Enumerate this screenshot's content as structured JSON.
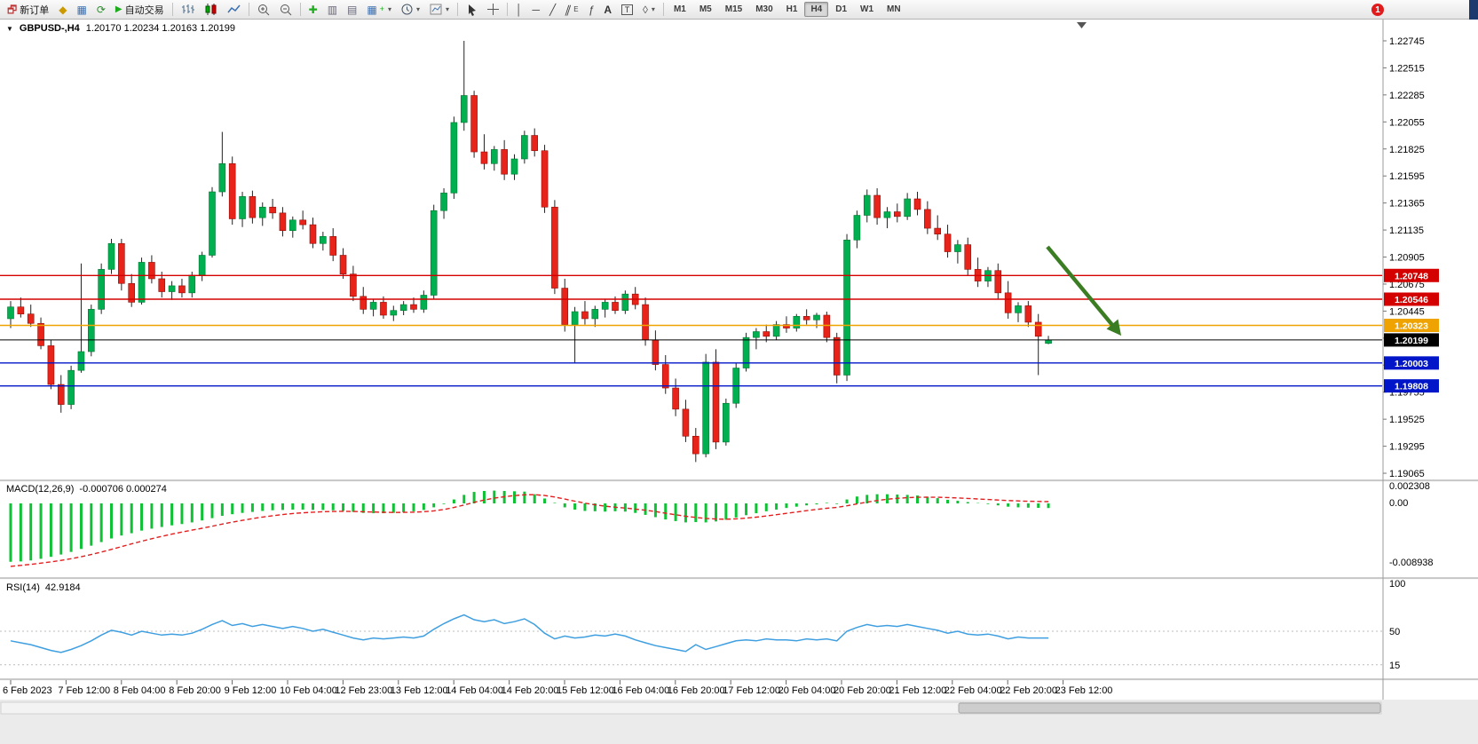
{
  "toolbar": {
    "new_order_label": "新订单",
    "auto_trading_label": "自动交易",
    "timeframes": [
      "M1",
      "M5",
      "M15",
      "M30",
      "H1",
      "H4",
      "D1",
      "W1",
      "MN"
    ],
    "active_timeframe": "H4",
    "notification_count": "1"
  },
  "chart": {
    "symbol_period": "GBPUSD-,H4",
    "ohlc_text": "1.20170 1.20234 1.20163 1.20199"
  },
  "chart_data": {
    "main": {
      "type": "candlestick",
      "symbol": "GBPUSD",
      "period": "H4",
      "up_color": "#00b050",
      "down_color": "#e8231a",
      "wick_color": "#222222",
      "price_axis_labels": [
        "1.22745",
        "1.22515",
        "1.22285",
        "1.22055",
        "1.21825",
        "1.21595",
        "1.21365",
        "1.21135",
        "1.20905",
        "1.20675",
        "1.20445",
        "1.20215",
        "1.19985",
        "1.19755",
        "1.19525",
        "1.19295",
        "1.19065"
      ],
      "time_labels": [
        "6 Feb 2023",
        "7 Feb 12:00",
        "8 Feb 04:00",
        "8 Feb 20:00",
        "9 Feb 12:00",
        "10 Feb 04:00",
        "12 Feb 23:00",
        "13 Feb 12:00",
        "14 Feb 04:00",
        "14 Feb 20:00",
        "15 Feb 12:00",
        "16 Feb 04:00",
        "16 Feb 20:00",
        "17 Feb 12:00",
        "20 Feb 04:00",
        "20 Feb 20:00",
        "21 Feb 12:00",
        "22 Feb 04:00",
        "22 Feb 20:00",
        "23 Feb 12:00"
      ],
      "levels": [
        {
          "price": 1.20748,
          "label": "1.20748",
          "color": "#d40000"
        },
        {
          "price": 1.20546,
          "label": "1.20546",
          "color": "#d40000"
        },
        {
          "price": 1.20323,
          "label": "1.20323",
          "color": "#efa300"
        },
        {
          "price": 1.20199,
          "label": "1.20199",
          "color": "#000000",
          "current": true
        },
        {
          "price": 1.20003,
          "label": "1.20003",
          "color": "#0016c8"
        },
        {
          "price": 1.19808,
          "label": "1.19808",
          "color": "#0016c8"
        }
      ],
      "annotation_arrow": {
        "color": "#3b7d23",
        "direction": "down-right"
      },
      "candles": [
        [
          1.2038,
          1.2053,
          1.203,
          1.2048
        ],
        [
          1.2048,
          1.2056,
          1.2039,
          1.2042
        ],
        [
          1.2042,
          1.205,
          1.2031,
          1.2034
        ],
        [
          1.2034,
          1.2039,
          1.2012,
          1.2015
        ],
        [
          1.2015,
          1.202,
          1.1978,
          1.1982
        ],
        [
          1.1982,
          1.199,
          1.1958,
          1.1965
        ],
        [
          1.1965,
          1.1998,
          1.1961,
          1.1994
        ],
        [
          1.1994,
          1.2085,
          1.1992,
          1.201
        ],
        [
          1.201,
          1.205,
          1.2006,
          1.2046
        ],
        [
          1.2046,
          1.2085,
          1.2042,
          1.208
        ],
        [
          1.208,
          1.2106,
          1.2076,
          1.2102
        ],
        [
          1.2102,
          1.2106,
          1.2062,
          1.2068
        ],
        [
          1.2068,
          1.2076,
          1.2048,
          1.2052
        ],
        [
          1.2052,
          1.209,
          1.205,
          1.2086
        ],
        [
          1.2086,
          1.2092,
          1.2068,
          1.2072
        ],
        [
          1.2072,
          1.2078,
          1.2056,
          1.2061
        ],
        [
          1.2061,
          1.207,
          1.2054,
          1.2066
        ],
        [
          1.2066,
          1.2072,
          1.2056,
          1.206
        ],
        [
          1.206,
          1.2078,
          1.2056,
          1.2075
        ],
        [
          1.2075,
          1.2095,
          1.207,
          1.2092
        ],
        [
          1.2092,
          1.215,
          1.209,
          1.2146
        ],
        [
          1.2146,
          1.2197,
          1.2142,
          1.217
        ],
        [
          1.217,
          1.2176,
          1.2118,
          1.2123
        ],
        [
          1.2123,
          1.2146,
          1.2116,
          1.2142
        ],
        [
          1.2142,
          1.2147,
          1.2119,
          1.2124
        ],
        [
          1.2124,
          1.2137,
          1.2117,
          1.2133
        ],
        [
          1.2133,
          1.214,
          1.2123,
          1.2128
        ],
        [
          1.2128,
          1.2133,
          1.2108,
          1.2113
        ],
        [
          1.2113,
          1.2125,
          1.2107,
          1.2122
        ],
        [
          1.2122,
          1.213,
          1.2114,
          1.2118
        ],
        [
          1.2118,
          1.2124,
          1.2098,
          1.2102
        ],
        [
          1.2102,
          1.2112,
          1.2096,
          1.2108
        ],
        [
          1.2108,
          1.2115,
          1.2087,
          1.2092
        ],
        [
          1.2092,
          1.2098,
          1.2072,
          1.2076
        ],
        [
          1.2076,
          1.2083,
          1.2053,
          1.2057
        ],
        [
          1.2057,
          1.2065,
          1.2042,
          1.2046
        ],
        [
          1.2046,
          1.2055,
          1.204,
          1.2052
        ],
        [
          1.2052,
          1.2057,
          1.2038,
          1.2041
        ],
        [
          1.2041,
          1.2049,
          1.2036,
          1.2045
        ],
        [
          1.2045,
          1.2053,
          1.2041,
          1.205
        ],
        [
          1.205,
          1.2056,
          1.2043,
          1.2046
        ],
        [
          1.2046,
          1.2062,
          1.2043,
          1.2058
        ],
        [
          1.2058,
          1.2135,
          1.2055,
          1.213
        ],
        [
          1.213,
          1.2149,
          1.2123,
          1.2145
        ],
        [
          1.2145,
          1.221,
          1.214,
          1.2205
        ],
        [
          1.2205,
          1.22745,
          1.2198,
          1.2228
        ],
        [
          1.2228,
          1.2232,
          1.2175,
          1.218
        ],
        [
          1.218,
          1.2195,
          1.2165,
          1.217
        ],
        [
          1.217,
          1.2185,
          1.2164,
          1.2182
        ],
        [
          1.2182,
          1.219,
          1.2156,
          1.2161
        ],
        [
          1.2161,
          1.2178,
          1.2156,
          1.2174
        ],
        [
          1.2174,
          1.2198,
          1.217,
          1.2194
        ],
        [
          1.2194,
          1.22,
          1.2176,
          1.2181
        ],
        [
          1.2181,
          1.2186,
          1.2128,
          1.2133
        ],
        [
          1.2133,
          1.2139,
          1.2059,
          1.2064
        ],
        [
          1.2064,
          1.2072,
          1.2027,
          1.2033
        ],
        [
          1.2033,
          1.2048,
          1.2,
          1.2044
        ],
        [
          1.2044,
          1.2053,
          1.2033,
          1.2038
        ],
        [
          1.2038,
          1.2049,
          1.2031,
          1.2046
        ],
        [
          1.2046,
          1.2055,
          1.2039,
          1.2052
        ],
        [
          1.2052,
          1.2057,
          1.2042,
          1.2045
        ],
        [
          1.2045,
          1.2062,
          1.2042,
          1.2059
        ],
        [
          1.2059,
          1.2065,
          1.2046,
          1.205
        ],
        [
          1.205,
          1.2056,
          1.2015,
          1.202
        ],
        [
          1.202,
          1.2028,
          1.1994,
          1.1999
        ],
        [
          1.1999,
          1.2007,
          1.1974,
          1.1979
        ],
        [
          1.1979,
          1.1987,
          1.1955,
          1.1961
        ],
        [
          1.1961,
          1.1969,
          1.1933,
          1.1938
        ],
        [
          1.1938,
          1.1945,
          1.1916,
          1.1923
        ],
        [
          1.1923,
          1.2008,
          1.192,
          1.2001
        ],
        [
          1.2001,
          1.2012,
          1.1927,
          1.1933
        ],
        [
          1.1933,
          1.197,
          1.193,
          1.1966
        ],
        [
          1.1966,
          1.2,
          1.1962,
          1.1996
        ],
        [
          1.1996,
          1.2026,
          1.1993,
          1.2022
        ],
        [
          1.2022,
          1.203,
          1.2012,
          1.2027
        ],
        [
          1.2027,
          1.2033,
          1.2018,
          1.2023
        ],
        [
          1.2023,
          1.2036,
          1.202,
          1.2033
        ],
        [
          1.2033,
          1.204,
          1.2026,
          1.203
        ],
        [
          1.203,
          1.2042,
          1.2027,
          1.204
        ],
        [
          1.204,
          1.2046,
          1.2033,
          1.2037
        ],
        [
          1.2037,
          1.2043,
          1.203,
          1.2041
        ],
        [
          1.2041,
          1.2044,
          1.2018,
          1.2022
        ],
        [
          1.2022,
          1.2026,
          1.1983,
          1.199
        ],
        [
          1.199,
          1.211,
          1.1985,
          1.2105
        ],
        [
          1.2105,
          1.213,
          1.2098,
          1.2126
        ],
        [
          1.2126,
          1.2148,
          1.212,
          1.2143
        ],
        [
          1.2143,
          1.2149,
          1.2118,
          1.2124
        ],
        [
          1.2124,
          1.2133,
          1.2115,
          1.2129
        ],
        [
          1.2129,
          1.2136,
          1.212,
          1.2125
        ],
        [
          1.2125,
          1.2145,
          1.2122,
          1.214
        ],
        [
          1.214,
          1.2146,
          1.2126,
          1.2131
        ],
        [
          1.2131,
          1.2138,
          1.211,
          1.2115
        ],
        [
          1.2115,
          1.2126,
          1.2105,
          1.211
        ],
        [
          1.211,
          1.2118,
          1.209,
          1.2095
        ],
        [
          1.2095,
          1.2105,
          1.2085,
          1.2101
        ],
        [
          1.2101,
          1.2107,
          1.2075,
          1.208
        ],
        [
          1.208,
          1.209,
          1.2065,
          1.207
        ],
        [
          1.207,
          1.2082,
          1.2065,
          1.2079
        ],
        [
          1.2079,
          1.2085,
          1.2055,
          1.206
        ],
        [
          1.206,
          1.207,
          1.2038,
          1.2043
        ],
        [
          1.2043,
          1.2052,
          1.2035,
          1.2049
        ],
        [
          1.2049,
          1.2053,
          1.2031,
          1.2035
        ],
        [
          1.2035,
          1.2042,
          1.199,
          1.2023
        ],
        [
          1.2017,
          1.20234,
          1.20163,
          1.20199
        ]
      ]
    },
    "macd": {
      "type": "bar",
      "label": "MACD(12,26,9)",
      "values_text": "-0.000706 0.000274",
      "axis_labels": [
        "0.002308",
        "0.00",
        "-0.008938"
      ],
      "histogram_color": "#0fc135",
      "signal_color": "#e02020",
      "histogram": [
        -0.0089,
        -0.00885,
        -0.0087,
        -0.00845,
        -0.00815,
        -0.0078,
        -0.0074,
        -0.00695,
        -0.00645,
        -0.0059,
        -0.00535,
        -0.0049,
        -0.00455,
        -0.00415,
        -0.00385,
        -0.0036,
        -0.00335,
        -0.00315,
        -0.0029,
        -0.0026,
        -0.00225,
        -0.0019,
        -0.00165,
        -0.00145,
        -0.0013,
        -0.00115,
        -0.00105,
        -0.001,
        -0.00095,
        -0.00095,
        -0.001,
        -0.001,
        -0.00105,
        -0.00115,
        -0.0013,
        -0.00145,
        -0.0015,
        -0.0015,
        -0.00145,
        -0.00135,
        -0.0012,
        -0.001,
        -0.0006,
        -0.0001,
        0.0006,
        0.0013,
        0.00175,
        0.0019,
        0.00195,
        0.0019,
        0.00185,
        0.0018,
        0.0014,
        0.00075,
        0.0,
        -0.0006,
        -0.00095,
        -0.00115,
        -0.0012,
        -0.00125,
        -0.0012,
        -0.00125,
        -0.00145,
        -0.00175,
        -0.0021,
        -0.00245,
        -0.0027,
        -0.0029,
        -0.00285,
        -0.0029,
        -0.00275,
        -0.0025,
        -0.00215,
        -0.0018,
        -0.0015,
        -0.0012,
        -0.00095,
        -0.0007,
        -0.0005,
        -0.0003,
        -0.00015,
        0.0,
        -0.0001,
        0.0006,
        0.00105,
        0.0013,
        0.0014,
        0.0014,
        0.00135,
        0.0013,
        0.0012,
        0.001,
        0.0008,
        0.00055,
        0.0004,
        0.0002,
        5e-05,
        -0.0001,
        -0.0003,
        -0.0005,
        -0.0006,
        -0.00065,
        -0.00068,
        -0.000706
      ],
      "signal": [
        -0.0096,
        -0.00945,
        -0.0093,
        -0.00912,
        -0.00892,
        -0.0087,
        -0.00844,
        -0.00814,
        -0.0078,
        -0.00742,
        -0.00701,
        -0.00659,
        -0.00618,
        -0.00577,
        -0.00539,
        -0.00503,
        -0.00469,
        -0.00438,
        -0.00408,
        -0.00379,
        -0.00348,
        -0.00316,
        -0.00286,
        -0.00258,
        -0.00232,
        -0.00209,
        -0.00188,
        -0.0017,
        -0.00155,
        -0.00143,
        -0.00134,
        -0.00127,
        -0.00123,
        -0.00121,
        -0.00123,
        -0.00127,
        -0.00132,
        -0.00136,
        -0.00138,
        -0.00137,
        -0.00134,
        -0.00127,
        -0.00114,
        -0.00093,
        -0.00062,
        -0.00024,
        0.00016,
        0.00051,
        0.0008,
        0.00102,
        0.00119,
        0.00131,
        0.00133,
        0.00121,
        0.00097,
        0.00066,
        0.00034,
        4e-05,
        -0.00021,
        -0.00042,
        -0.00058,
        -0.00071,
        -0.00086,
        -0.00104,
        -0.00125,
        -0.00149,
        -0.00173,
        -0.00196,
        -0.00214,
        -0.00229,
        -0.00238,
        -0.00241,
        -0.00236,
        -0.00225,
        -0.0021,
        -0.00192,
        -0.00172,
        -0.00152,
        -0.00132,
        -0.00111,
        -0.00092,
        -0.00074,
        -0.00061,
        -0.00037,
        -8e-05,
        0.00019,
        0.00043,
        0.00063,
        0.00077,
        0.00088,
        0.00094,
        0.00095,
        0.00093,
        0.00089,
        0.00083,
        0.00076,
        0.00068,
        0.0006,
        0.00052,
        0.00044,
        0.00038,
        0.00033,
        0.0003,
        0.000274
      ]
    },
    "rsi": {
      "type": "line",
      "label": "RSI(14)",
      "value_text": "42.9184",
      "axis_labels": [
        "100",
        "50",
        "15"
      ],
      "level_lines": [
        50,
        15
      ],
      "line_color": "#3f9fe0",
      "values": [
        40,
        38,
        36,
        33,
        30,
        28,
        31,
        35,
        40,
        46,
        51,
        49,
        46,
        50,
        48,
        46,
        47,
        46,
        48,
        52,
        57,
        61,
        56,
        58,
        55,
        57,
        55,
        53,
        55,
        53,
        50,
        52,
        49,
        46,
        43,
        41,
        43,
        42,
        43,
        44,
        43,
        45,
        52,
        58,
        63,
        67,
        62,
        60,
        62,
        58,
        60,
        63,
        57,
        48,
        42,
        45,
        43,
        44,
        46,
        45,
        47,
        45,
        41,
        38,
        35,
        33,
        31,
        29,
        36,
        31,
        34,
        37,
        40,
        41,
        40,
        42,
        41,
        41,
        40,
        42,
        41,
        42,
        40,
        50,
        54,
        57,
        55,
        56,
        55,
        57,
        55,
        53,
        51,
        48,
        50,
        47,
        46,
        47,
        45,
        42,
        44,
        43,
        43,
        42.9184
      ]
    }
  }
}
